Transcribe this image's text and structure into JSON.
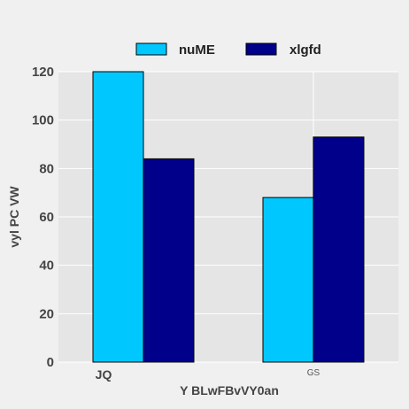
{
  "chart_data": {
    "type": "bar",
    "categories": [
      "JQ",
      "GS"
    ],
    "series": [
      {
        "name": "nuME",
        "values": [
          120,
          68
        ],
        "color": "#00c8ff"
      },
      {
        "name": "xlgfd",
        "values": [
          84,
          93
        ],
        "color": "#00008b"
      }
    ],
    "xlabel": "Y BLwFBvVY0an",
    "ylabel": "vyl PC VW",
    "ylim": [
      0,
      120
    ],
    "yticks": [
      0,
      20,
      40,
      60,
      80,
      100,
      120
    ],
    "grid": true,
    "legend_position": "top-center",
    "plot_background": "#e5e5e5",
    "grid_color": "#ffffff"
  }
}
